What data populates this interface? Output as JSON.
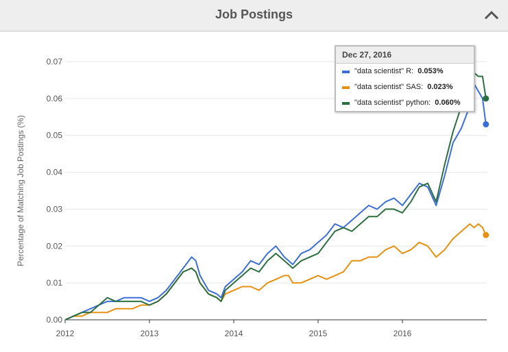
{
  "panel": {
    "title": "Job Postings",
    "collapse_icon": "chevron-up-icon"
  },
  "tooltip": {
    "date": "Dec 27, 2016",
    "rows": [
      {
        "label": "\"data scientist\" R",
        "value": "0.053%",
        "color": "#3b6fd8"
      },
      {
        "label": "\"data scientist\" SAS",
        "value": "0.023%",
        "color": "#e8900f"
      },
      {
        "label": "\"data scientist\" python",
        "value": "0.060%",
        "color": "#2b6e3f"
      }
    ]
  },
  "chart_data": {
    "type": "line",
    "title": "",
    "xlabel": "",
    "ylabel": "Percentage of Matching Job Postings (%)",
    "xlim": [
      2012.0,
      2017.0
    ],
    "ylim": [
      0,
      0.07
    ],
    "x_ticks": [
      "2012",
      "2013",
      "2014",
      "2015",
      "2016"
    ],
    "x_tick_values": [
      2012,
      2013,
      2014,
      2015,
      2016
    ],
    "y_ticks": [
      "0.00",
      "0.01",
      "0.02",
      "0.03",
      "0.04",
      "0.05",
      "0.06",
      "0.07"
    ],
    "y_tick_values": [
      0,
      0.01,
      0.02,
      0.03,
      0.04,
      0.05,
      0.06,
      0.07
    ],
    "grid": true,
    "series": [
      {
        "name": "\"data scientist\" R",
        "color": "#3b6fd8",
        "x": [
          2012.0,
          2012.1,
          2012.2,
          2012.3,
          2012.4,
          2012.5,
          2012.6,
          2012.7,
          2012.8,
          2012.9,
          2013.0,
          2013.1,
          2013.2,
          2013.3,
          2013.4,
          2013.5,
          2013.55,
          2013.6,
          2013.7,
          2013.8,
          2013.85,
          2013.9,
          2014.0,
          2014.1,
          2014.2,
          2014.3,
          2014.4,
          2014.5,
          2014.6,
          2014.65,
          2014.7,
          2014.8,
          2014.9,
          2015.0,
          2015.1,
          2015.2,
          2015.3,
          2015.4,
          2015.5,
          2015.6,
          2015.7,
          2015.8,
          2015.9,
          2016.0,
          2016.1,
          2016.2,
          2016.3,
          2016.4,
          2016.5,
          2016.6,
          2016.7,
          2016.8,
          2016.85,
          2016.9,
          2016.95,
          2016.99
        ],
        "values": [
          0.0,
          0.001,
          0.002,
          0.003,
          0.004,
          0.005,
          0.005,
          0.006,
          0.006,
          0.006,
          0.005,
          0.006,
          0.008,
          0.011,
          0.014,
          0.017,
          0.016,
          0.012,
          0.008,
          0.007,
          0.006,
          0.009,
          0.011,
          0.013,
          0.016,
          0.015,
          0.018,
          0.02,
          0.017,
          0.016,
          0.015,
          0.018,
          0.019,
          0.021,
          0.023,
          0.026,
          0.025,
          0.027,
          0.029,
          0.031,
          0.03,
          0.032,
          0.033,
          0.031,
          0.034,
          0.037,
          0.036,
          0.031,
          0.039,
          0.048,
          0.052,
          0.058,
          0.064,
          0.062,
          0.06,
          0.053
        ]
      },
      {
        "name": "\"data scientist\" SAS",
        "color": "#e8900f",
        "x": [
          2012.0,
          2012.1,
          2012.2,
          2012.3,
          2012.4,
          2012.5,
          2012.6,
          2012.7,
          2012.8,
          2012.9,
          2013.0,
          2013.1,
          2013.2,
          2013.3,
          2013.4,
          2013.5,
          2013.55,
          2013.6,
          2013.7,
          2013.8,
          2013.85,
          2013.9,
          2014.0,
          2014.1,
          2014.2,
          2014.3,
          2014.4,
          2014.5,
          2014.6,
          2014.65,
          2014.7,
          2014.8,
          2014.9,
          2015.0,
          2015.1,
          2015.2,
          2015.3,
          2015.4,
          2015.5,
          2015.6,
          2015.7,
          2015.8,
          2015.9,
          2016.0,
          2016.1,
          2016.2,
          2016.3,
          2016.4,
          2016.5,
          2016.6,
          2016.7,
          2016.8,
          2016.85,
          2016.9,
          2016.95,
          2016.99
        ],
        "values": [
          0.0,
          0.001,
          0.001,
          0.002,
          0.002,
          0.002,
          0.003,
          0.003,
          0.003,
          0.004,
          0.004,
          0.005,
          0.007,
          0.01,
          0.013,
          0.014,
          0.013,
          0.01,
          0.007,
          0.006,
          0.005,
          0.007,
          0.008,
          0.009,
          0.009,
          0.008,
          0.01,
          0.011,
          0.012,
          0.012,
          0.01,
          0.01,
          0.011,
          0.012,
          0.011,
          0.012,
          0.013,
          0.016,
          0.016,
          0.017,
          0.017,
          0.019,
          0.02,
          0.018,
          0.019,
          0.021,
          0.02,
          0.017,
          0.019,
          0.022,
          0.024,
          0.026,
          0.025,
          0.026,
          0.025,
          0.023
        ]
      },
      {
        "name": "\"data scientist\" python",
        "color": "#2b6e3f",
        "x": [
          2012.0,
          2012.1,
          2012.2,
          2012.3,
          2012.4,
          2012.5,
          2012.6,
          2012.7,
          2012.8,
          2012.9,
          2013.0,
          2013.1,
          2013.2,
          2013.3,
          2013.4,
          2013.5,
          2013.55,
          2013.6,
          2013.7,
          2013.8,
          2013.85,
          2013.9,
          2014.0,
          2014.1,
          2014.2,
          2014.3,
          2014.4,
          2014.5,
          2014.6,
          2014.65,
          2014.7,
          2014.8,
          2014.9,
          2015.0,
          2015.1,
          2015.2,
          2015.3,
          2015.4,
          2015.5,
          2015.6,
          2015.7,
          2015.8,
          2015.9,
          2016.0,
          2016.1,
          2016.2,
          2016.3,
          2016.4,
          2016.5,
          2016.6,
          2016.7,
          2016.8,
          2016.85,
          2016.9,
          2016.95,
          2016.99
        ],
        "values": [
          0.0,
          0.001,
          0.002,
          0.002,
          0.004,
          0.006,
          0.005,
          0.005,
          0.005,
          0.005,
          0.004,
          0.005,
          0.007,
          0.01,
          0.013,
          0.014,
          0.013,
          0.01,
          0.007,
          0.006,
          0.005,
          0.008,
          0.01,
          0.012,
          0.014,
          0.013,
          0.016,
          0.018,
          0.016,
          0.015,
          0.014,
          0.016,
          0.017,
          0.018,
          0.021,
          0.024,
          0.025,
          0.024,
          0.026,
          0.028,
          0.028,
          0.03,
          0.03,
          0.029,
          0.032,
          0.036,
          0.037,
          0.032,
          0.042,
          0.051,
          0.058,
          0.063,
          0.067,
          0.066,
          0.066,
          0.06
        ]
      }
    ]
  }
}
